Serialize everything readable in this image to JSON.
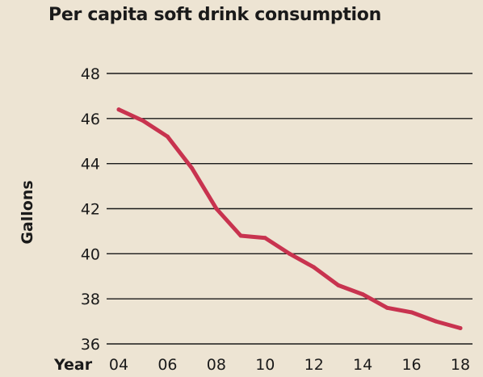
{
  "chart_data": {
    "type": "line",
    "title": "Per capita soft drink consumption",
    "xlabel": "Year",
    "ylabel": "Gallons",
    "ylim": [
      36,
      48
    ],
    "yticks": [
      36,
      38,
      40,
      42,
      44,
      46,
      48
    ],
    "xticks": [
      "04",
      "06",
      "08",
      "10",
      "12",
      "14",
      "16",
      "18"
    ],
    "grid": true,
    "x": [
      2004,
      2005,
      2006,
      2007,
      2008,
      2009,
      2010,
      2011,
      2012,
      2013,
      2014,
      2015,
      2016,
      2017,
      2018
    ],
    "series": [
      {
        "color": "#c8334f",
        "values": [
          46.4,
          45.9,
          45.2,
          43.8,
          42.0,
          40.8,
          40.7,
          40.0,
          39.4,
          38.6,
          38.2,
          37.6,
          37.4,
          37.0,
          36.7
        ]
      }
    ]
  }
}
